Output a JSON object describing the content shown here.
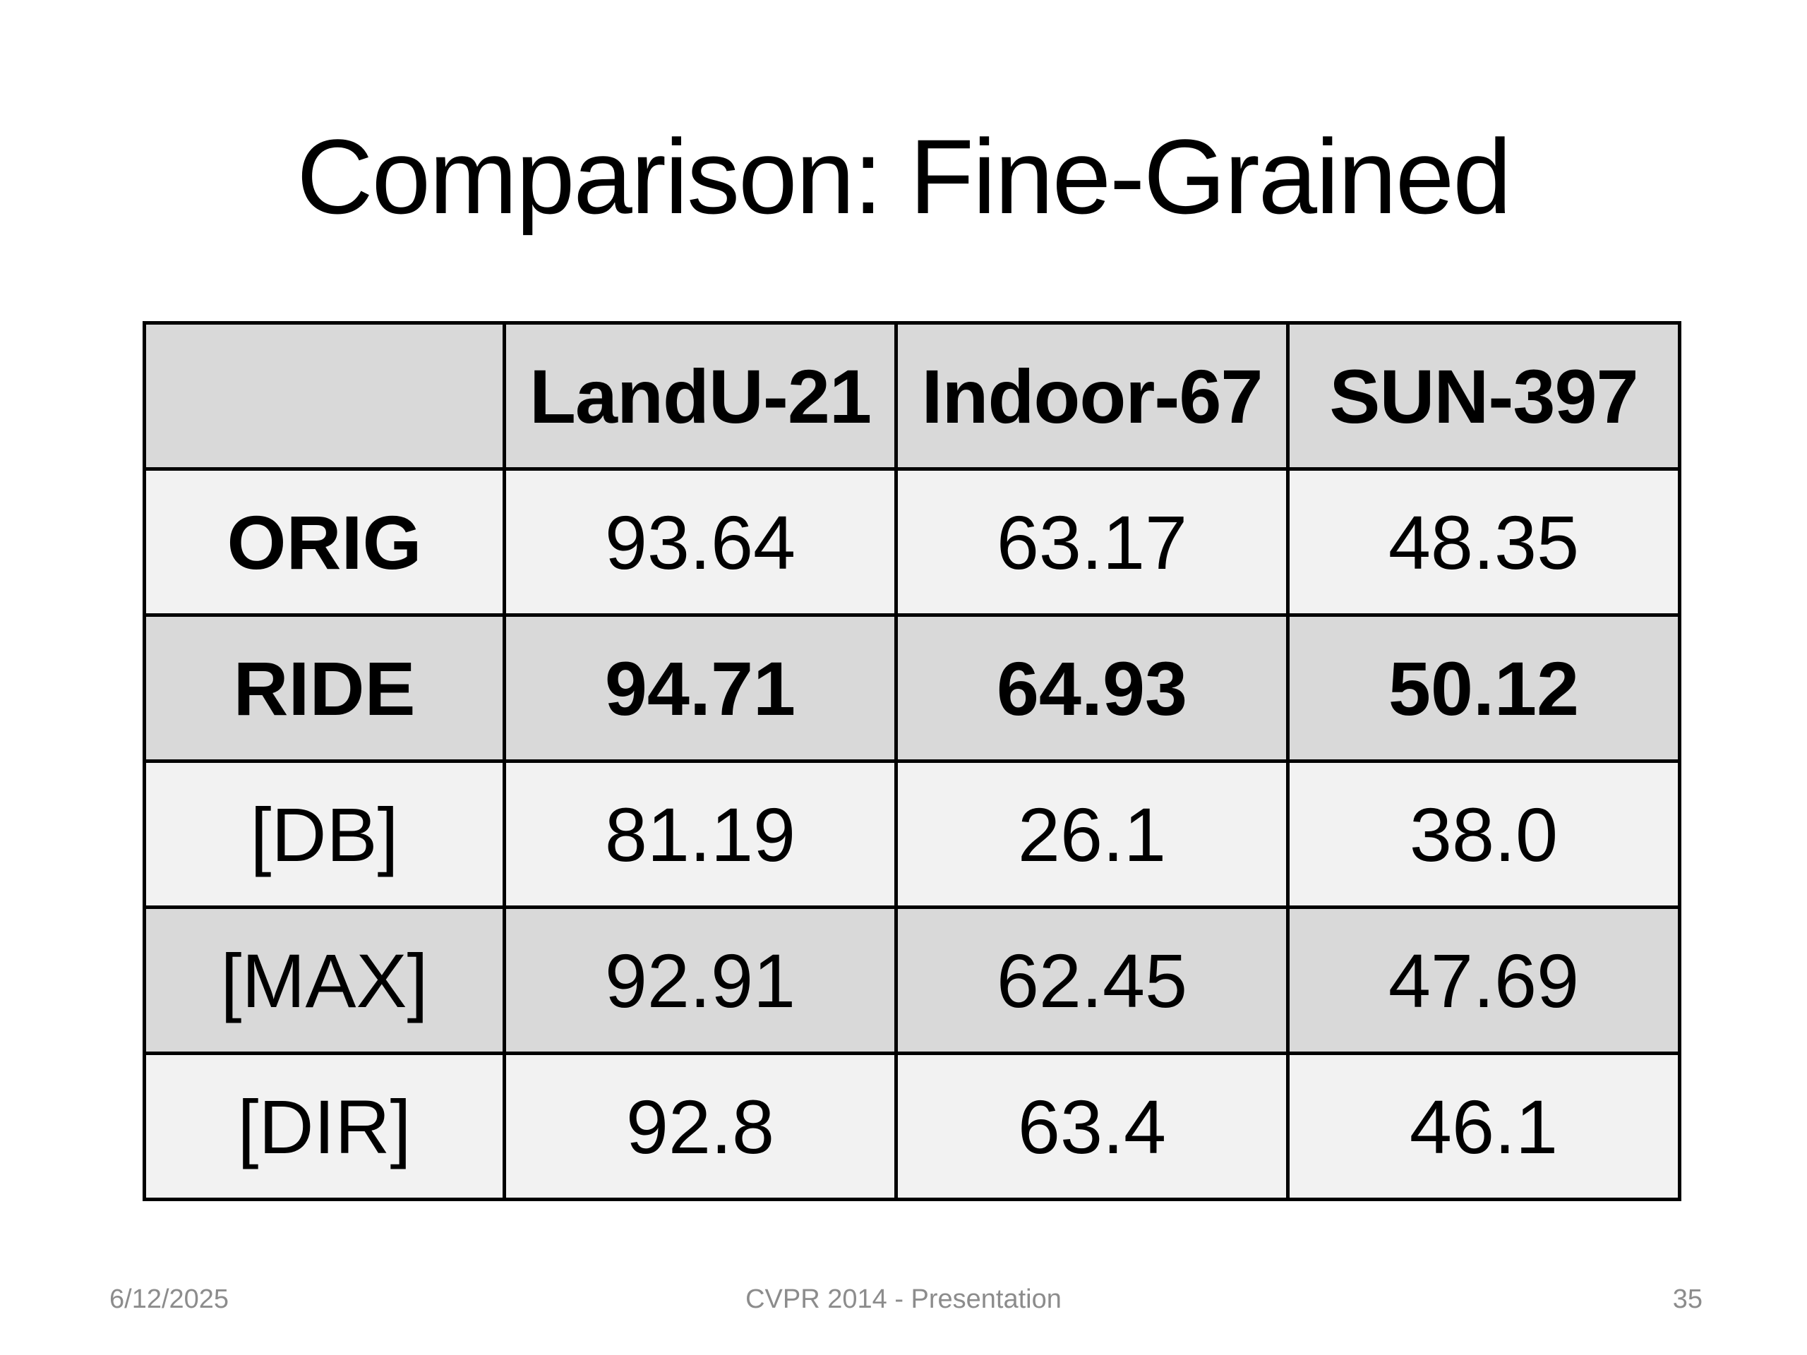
{
  "slide": {
    "title": "Comparison: Fine-Grained"
  },
  "table": {
    "columns": [
      "",
      "LandU-21",
      "Indoor-67",
      "SUN-397"
    ],
    "rows": [
      {
        "label": "ORIG",
        "values": [
          "93.64",
          "63.17",
          "48.35"
        ],
        "bold": false,
        "label_bold": true
      },
      {
        "label": "RIDE",
        "values": [
          "94.71",
          "64.93",
          "50.12"
        ],
        "bold": true,
        "label_bold": true
      },
      {
        "label": "[DB]",
        "values": [
          "81.19",
          "26.1",
          "38.0"
        ],
        "bold": false,
        "label_bold": false
      },
      {
        "label": "[MAX]",
        "values": [
          "92.91",
          "62.45",
          "47.69"
        ],
        "bold": false,
        "label_bold": false
      },
      {
        "label": "[DIR]",
        "values": [
          "92.8",
          "63.4",
          "46.1"
        ],
        "bold": false,
        "label_bold": false
      }
    ]
  },
  "footer": {
    "date": "6/12/2025",
    "center": "CVPR 2014 - Presentation",
    "page": "35"
  }
}
